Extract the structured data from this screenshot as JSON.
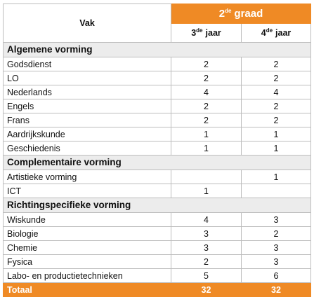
{
  "header": {
    "subject": "Vak",
    "group": {
      "number": "2",
      "suffix": "de",
      "label": "graad"
    },
    "years": [
      {
        "number": "3",
        "suffix": "de",
        "label": "jaar"
      },
      {
        "number": "4",
        "suffix": "de",
        "label": "jaar"
      }
    ]
  },
  "sections": [
    {
      "title": "Algemene vorming",
      "rows": [
        [
          "Godsdienst",
          2,
          2
        ],
        [
          "LO",
          2,
          2
        ],
        [
          "Nederlands",
          4,
          4
        ],
        [
          "Engels",
          2,
          2
        ],
        [
          "Frans",
          2,
          2
        ],
        [
          "Aardrijkskunde",
          1,
          1
        ],
        [
          "Geschiedenis",
          1,
          1
        ]
      ]
    },
    {
      "title": "Complementaire vorming",
      "rows": [
        [
          "Artistieke vorming",
          null,
          1
        ],
        [
          "ICT",
          1,
          null
        ]
      ]
    },
    {
      "title": "Richtingspecifieke vorming",
      "rows": [
        [
          "Wiskunde",
          4,
          3
        ],
        [
          "Biologie",
          3,
          2
        ],
        [
          "Chemie",
          3,
          3
        ],
        [
          "Fysica",
          2,
          3
        ],
        [
          "Labo- en productietechnieken",
          5,
          6
        ]
      ]
    }
  ],
  "total": {
    "label": "Totaal",
    "values": [
      32,
      32
    ]
  }
}
